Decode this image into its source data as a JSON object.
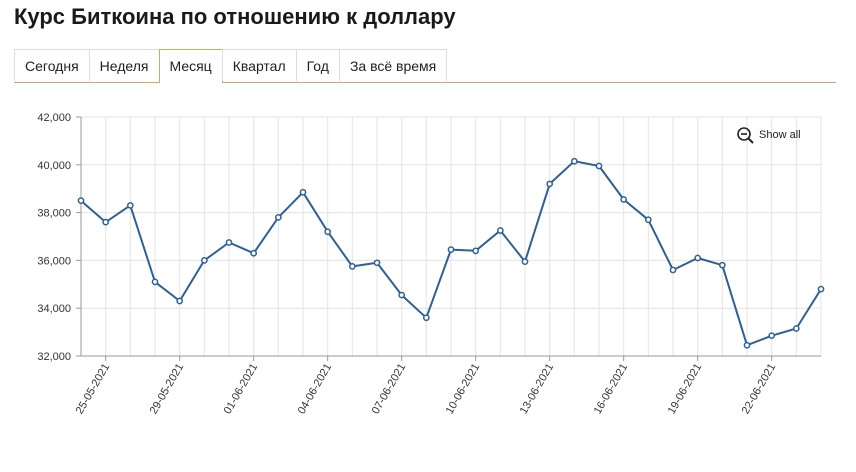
{
  "title": "Курс Биткоина по отношению к доллару",
  "tabs": [
    {
      "label": "Сегодня",
      "active": false
    },
    {
      "label": "Неделя",
      "active": false
    },
    {
      "label": "Месяц",
      "active": true
    },
    {
      "label": "Квартал",
      "active": false
    },
    {
      "label": "Год",
      "active": false
    },
    {
      "label": "За всё время",
      "active": false
    }
  ],
  "show_all_label": "Show all",
  "colors": {
    "line": "#2e6096",
    "accent": "#d4a85a",
    "grid": "#e3e3e3"
  },
  "chart_data": {
    "type": "line",
    "title": "",
    "xlabel": "",
    "ylabel": "",
    "ylim": [
      32000,
      42000
    ],
    "yticks": [
      32000,
      34000,
      36000,
      38000,
      40000,
      42000
    ],
    "ytick_labels": [
      "32,000",
      "34,000",
      "36,000",
      "38,000",
      "40,000",
      "42,000"
    ],
    "xtick_labels": [
      "25-05-2021",
      "29-05-2021",
      "01-06-2021",
      "04-06-2021",
      "07-06-2021",
      "10-06-2021",
      "13-06-2021",
      "16-06-2021",
      "19-06-2021",
      "22-06-2021"
    ],
    "grid": true,
    "series": [
      {
        "values": [
          38500,
          37600,
          38300,
          35100,
          34300,
          36000,
          36750,
          36300,
          37800,
          38850,
          37200,
          35750,
          35900,
          34550,
          33600,
          36450,
          36400,
          37250,
          35950,
          39200,
          40150,
          39950,
          38550,
          37700,
          35600,
          36100,
          35800,
          32450,
          32850,
          33150,
          34800
        ]
      }
    ]
  }
}
